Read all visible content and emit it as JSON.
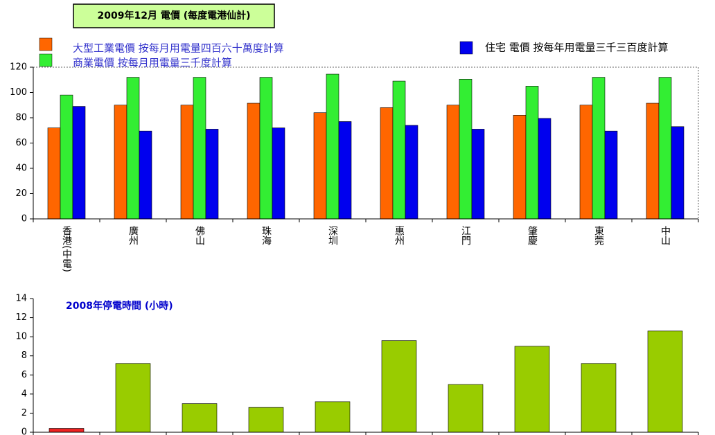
{
  "chart_data": [
    {
      "type": "bar",
      "title": "2009年12月 電價 (每度電港仙計)",
      "categories": [
        "香港(中電)",
        "廣州",
        "佛山",
        "珠海",
        "深圳",
        "惠州",
        "江門",
        "肇慶",
        "東莞",
        "中山"
      ],
      "series": [
        {
          "name": "大型工業電價 按每月用電量四百六十萬度計算",
          "color": "#ff6600",
          "values": [
            72,
            90,
            90,
            91.5,
            84,
            88,
            90,
            82,
            90,
            91.5
          ]
        },
        {
          "name": "商業電價 按每月用電量三千度計算",
          "color": "#33ee33",
          "values": [
            98,
            112,
            112,
            112,
            114.5,
            109,
            110.5,
            105,
            112,
            112
          ]
        },
        {
          "name": "住宅 電價 按每年用電量三千三百度計算",
          "color": "#0000ee",
          "values": [
            89,
            69.5,
            71,
            72,
            77,
            74,
            71,
            79.5,
            69.5,
            73
          ]
        }
      ],
      "ylim": [
        0,
        120
      ],
      "yticks": [
        0,
        20,
        40,
        60,
        80,
        100,
        120
      ]
    },
    {
      "type": "bar",
      "title": "2008年停電時間 (小時)",
      "values": [
        0.4,
        7.2,
        3,
        2.6,
        3.2,
        9.6,
        5,
        9,
        7.2,
        10.6
      ],
      "colors": [
        "#ee2222",
        "#99cc00",
        "#99cc00",
        "#99cc00",
        "#99cc00",
        "#99cc00",
        "#99cc00",
        "#99cc00",
        "#99cc00",
        "#99cc00"
      ],
      "ylim": [
        0,
        14
      ],
      "yticks": [
        0,
        2,
        4,
        6,
        8,
        10,
        12,
        14
      ]
    }
  ]
}
